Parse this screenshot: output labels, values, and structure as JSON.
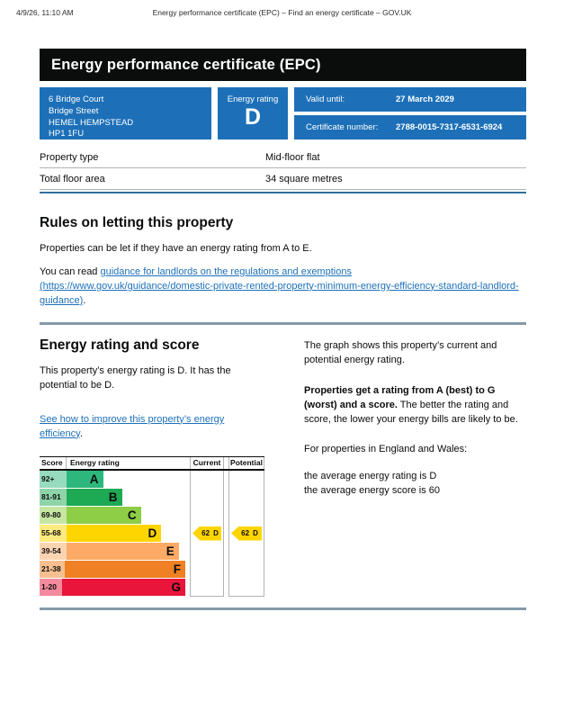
{
  "page": {
    "print_timestamp": "4/9/26, 11:10 AM",
    "print_title": "Energy performance certificate (EPC) – Find an energy certificate – GOV.UK"
  },
  "banner": {
    "title": "Energy performance certificate (EPC)"
  },
  "summary": {
    "address_lines": [
      "6 Bridge Court",
      "Bridge Street",
      "HEMEL HEMPSTEAD",
      "HP1 1FU"
    ],
    "rating_label": "Energy rating",
    "rating_letter": "D",
    "valid_until_label": "Valid until:",
    "valid_until_value": "27 March 2029",
    "certificate_label": "Certificate number:",
    "certificate_value": "2788-0015-7317-6531-6924"
  },
  "property_table": {
    "rows": [
      {
        "label": "Property type",
        "value": "Mid-floor flat"
      },
      {
        "label": "Total floor area",
        "value": "34 square metres"
      }
    ]
  },
  "rules": {
    "heading": "Rules on letting this property",
    "paragraph": "Properties can be let if they have an energy rating from A to E.",
    "read_prefix": "You can read ",
    "link_text": "guidance for landlords on the regulations and exemptions (https://www.gov.uk/guidance/domestic-private-rented-property-minimum-energy-efficiency-standard-landlord-guidance)",
    "read_suffix": "."
  },
  "rating_section": {
    "heading": "Energy rating and score",
    "intro": "This property’s energy rating is D. It has the potential to be D.",
    "improve_link": "See how to improve this property’s energy efficiency",
    "improve_suffix": ".",
    "graph_intro": "The graph shows this property’s current and potential energy rating.",
    "explain_bold": "Properties get a rating from A (best) to G (worst) and a score.",
    "explain_rest": " The better the rating and score, the lower your energy bills are likely to be.",
    "averages_intro": "For properties in England and Wales:",
    "average_rating_line": "the average energy rating is D",
    "average_score_line": "the average energy score is 60"
  },
  "chart_data": {
    "type": "epc-rating-bands",
    "title": "",
    "columns": [
      "Score",
      "Energy rating",
      "Current",
      "Potential"
    ],
    "bands": [
      {
        "score": "92+",
        "letter": "A",
        "bar_color": "#2db77c",
        "score_color": "#96dbbd",
        "width_pct": 25
      },
      {
        "score": "81-91",
        "letter": "B",
        "bar_color": "#1ea954",
        "score_color": "#8ed4a9",
        "width_pct": 38
      },
      {
        "score": "69-80",
        "letter": "C",
        "bar_color": "#8dce46",
        "score_color": "#c6e6a2",
        "width_pct": 51
      },
      {
        "score": "55-68",
        "letter": "D",
        "bar_color": "#ffd500",
        "score_color": "#ffea7f",
        "width_pct": 65
      },
      {
        "score": "39-54",
        "letter": "E",
        "bar_color": "#fcaa65",
        "score_color": "#fdd4b2",
        "width_pct": 77
      },
      {
        "score": "21-38",
        "letter": "F",
        "bar_color": "#ef8023",
        "score_color": "#f7bf90",
        "width_pct": 90
      },
      {
        "score": "1-20",
        "letter": "G",
        "bar_color": "#e9153b",
        "score_color": "#f48a9d",
        "width_pct": 100
      }
    ],
    "current": {
      "score": "62",
      "letter": "D",
      "band_row_index": 3
    },
    "potential": {
      "score": "62",
      "letter": "D",
      "band_row_index": 3
    },
    "marker_color": "#ffd500"
  },
  "colors": {
    "govuk_blue": "#1d70b8",
    "banner_bg": "#0b0c0c"
  }
}
